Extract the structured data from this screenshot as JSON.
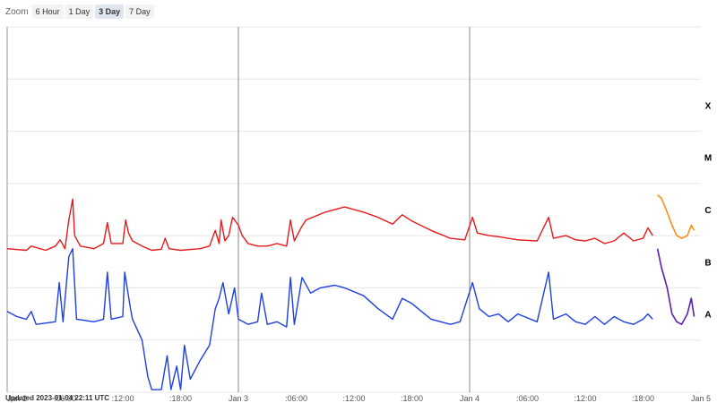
{
  "zoom": {
    "label": "Zoom",
    "buttons": [
      {
        "label": "6 Hour",
        "active": false
      },
      {
        "label": "1 Day",
        "active": false
      },
      {
        "label": "3 Day",
        "active": true
      },
      {
        "label": "7 Day",
        "active": false
      }
    ]
  },
  "updated": "Updated 2023-01-04 22:11 UTC",
  "chart_data": {
    "type": "line",
    "title": "",
    "xlabel": "",
    "ylabel": "",
    "grid": true,
    "x_tick_labels": [
      "Jan 2",
      ":06:00",
      ":12:00",
      ":18:00",
      "Jan 3",
      ":06:00",
      ":12:00",
      ":18:00",
      "Jan 4",
      ":06:00",
      ":12:00",
      ":18:00",
      "Jan 5"
    ],
    "x_range_hours": [
      0,
      72
    ],
    "y_scale": "log",
    "flare_classes": [
      {
        "label": "X",
        "level": 5
      },
      {
        "label": "M",
        "level": 4
      },
      {
        "label": "C",
        "level": 3
      },
      {
        "label": "B",
        "level": 2
      },
      {
        "label": "A",
        "level": 1
      }
    ],
    "y_range_levels": [
      0,
      7
    ],
    "colors": {
      "long": "#e41a1c",
      "long_recent": "#ff8c1a",
      "short": "#1f3fe0",
      "short_recent": "#5a1fb0"
    },
    "series": [
      {
        "key": "long",
        "points": [
          [
            0,
            2.75
          ],
          [
            2,
            2.72
          ],
          [
            2.5,
            2.8
          ],
          [
            4,
            2.72
          ],
          [
            5,
            2.8
          ],
          [
            5.5,
            2.92
          ],
          [
            6,
            2.75
          ],
          [
            6.4,
            3.3
          ],
          [
            6.8,
            3.7
          ],
          [
            7,
            3.0
          ],
          [
            7.6,
            2.8
          ],
          [
            9,
            2.75
          ],
          [
            10,
            2.85
          ],
          [
            10.4,
            3.25
          ],
          [
            10.8,
            2.85
          ],
          [
            12,
            2.85
          ],
          [
            12.3,
            3.3
          ],
          [
            12.6,
            3.05
          ],
          [
            13,
            2.9
          ],
          [
            14,
            2.8
          ],
          [
            15,
            2.72
          ],
          [
            16,
            2.74
          ],
          [
            16.4,
            2.95
          ],
          [
            16.8,
            2.75
          ],
          [
            18,
            2.72
          ],
          [
            20,
            2.75
          ],
          [
            21,
            2.8
          ],
          [
            21.6,
            3.1
          ],
          [
            22,
            2.85
          ],
          [
            22.2,
            3.3
          ],
          [
            22.6,
            2.9
          ],
          [
            23,
            3.0
          ],
          [
            23.4,
            3.35
          ],
          [
            24,
            3.2
          ],
          [
            24.4,
            3.0
          ],
          [
            25,
            2.85
          ],
          [
            26,
            2.8
          ],
          [
            27,
            2.8
          ],
          [
            28,
            2.85
          ],
          [
            29,
            2.8
          ],
          [
            29.4,
            3.3
          ],
          [
            29.8,
            2.9
          ],
          [
            30.5,
            3.15
          ],
          [
            31,
            3.3
          ],
          [
            33,
            3.45
          ],
          [
            35,
            3.55
          ],
          [
            37,
            3.45
          ],
          [
            38.5,
            3.35
          ],
          [
            40,
            3.22
          ],
          [
            41,
            3.4
          ],
          [
            42,
            3.28
          ],
          [
            44,
            3.1
          ],
          [
            46,
            2.95
          ],
          [
            47.5,
            2.92
          ],
          [
            48.3,
            3.35
          ],
          [
            48.8,
            3.05
          ],
          [
            50,
            3.0
          ],
          [
            51,
            2.98
          ],
          [
            52,
            2.95
          ],
          [
            53,
            2.92
          ],
          [
            55,
            2.9
          ],
          [
            56.2,
            3.35
          ],
          [
            56.7,
            2.95
          ],
          [
            58,
            3.0
          ],
          [
            59,
            2.92
          ],
          [
            60,
            2.9
          ],
          [
            61,
            2.95
          ],
          [
            62,
            2.85
          ],
          [
            63,
            2.9
          ],
          [
            64,
            3.05
          ],
          [
            65,
            2.9
          ],
          [
            66,
            2.95
          ],
          [
            66.5,
            3.15
          ],
          [
            67,
            3.0
          ],
          [
            67.5,
            3.78
          ],
          [
            67.9,
            3.72
          ],
          [
            68.5,
            3.45
          ],
          [
            69,
            3.2
          ],
          [
            69.5,
            3.0
          ],
          [
            70,
            2.95
          ],
          [
            70.6,
            3.0
          ],
          [
            71,
            3.2
          ],
          [
            71.3,
            3.1
          ]
        ]
      },
      {
        "key": "short",
        "points": [
          [
            0,
            1.55
          ],
          [
            1,
            1.45
          ],
          [
            2,
            1.4
          ],
          [
            2.5,
            1.55
          ],
          [
            3,
            1.3
          ],
          [
            5,
            1.35
          ],
          [
            5.4,
            2.1
          ],
          [
            5.8,
            1.35
          ],
          [
            6.4,
            2.6
          ],
          [
            6.8,
            2.75
          ],
          [
            7.2,
            1.4
          ],
          [
            9,
            1.35
          ],
          [
            10,
            1.4
          ],
          [
            10.4,
            2.3
          ],
          [
            10.8,
            1.4
          ],
          [
            12,
            1.45
          ],
          [
            12.2,
            2.3
          ],
          [
            12.8,
            1.6
          ],
          [
            13,
            1.4
          ],
          [
            14,
            1.0
          ],
          [
            14.6,
            0.3
          ],
          [
            15,
            0.05
          ],
          [
            16,
            0.05
          ],
          [
            16.6,
            0.7
          ],
          [
            17,
            0.05
          ],
          [
            17.6,
            0.5
          ],
          [
            18,
            0.05
          ],
          [
            18.4,
            0.9
          ],
          [
            19,
            0.25
          ],
          [
            20,
            0.6
          ],
          [
            21,
            0.9
          ],
          [
            21.6,
            1.6
          ],
          [
            22,
            1.8
          ],
          [
            22.4,
            2.1
          ],
          [
            23,
            1.5
          ],
          [
            23.6,
            2.0
          ],
          [
            24,
            1.4
          ],
          [
            25,
            1.3
          ],
          [
            26,
            1.35
          ],
          [
            26.4,
            1.9
          ],
          [
            27,
            1.3
          ],
          [
            28,
            1.35
          ],
          [
            29,
            1.25
          ],
          [
            29.4,
            2.2
          ],
          [
            29.8,
            1.3
          ],
          [
            30.6,
            2.2
          ],
          [
            31.5,
            1.9
          ],
          [
            32.5,
            2.0
          ],
          [
            34,
            2.05
          ],
          [
            35,
            2.0
          ],
          [
            37,
            1.85
          ],
          [
            38.5,
            1.6
          ],
          [
            40,
            1.4
          ],
          [
            41,
            1.8
          ],
          [
            42,
            1.7
          ],
          [
            44,
            1.4
          ],
          [
            45,
            1.35
          ],
          [
            46,
            1.3
          ],
          [
            47,
            1.35
          ],
          [
            48.3,
            2.1
          ],
          [
            49,
            1.6
          ],
          [
            50,
            1.45
          ],
          [
            51,
            1.5
          ],
          [
            52,
            1.35
          ],
          [
            53,
            1.5
          ],
          [
            55,
            1.35
          ],
          [
            56.2,
            2.3
          ],
          [
            56.7,
            1.4
          ],
          [
            58,
            1.5
          ],
          [
            59,
            1.35
          ],
          [
            60,
            1.3
          ],
          [
            61,
            1.45
          ],
          [
            62,
            1.3
          ],
          [
            63,
            1.45
          ],
          [
            64,
            1.35
          ],
          [
            65,
            1.3
          ],
          [
            66,
            1.4
          ],
          [
            66.5,
            1.5
          ],
          [
            67,
            1.4
          ],
          [
            67.5,
            2.75
          ],
          [
            67.9,
            2.4
          ],
          [
            68.5,
            2.0
          ],
          [
            69,
            1.5
          ],
          [
            69.5,
            1.35
          ],
          [
            70,
            1.3
          ],
          [
            70.6,
            1.5
          ],
          [
            71,
            1.8
          ],
          [
            71.3,
            1.45
          ]
        ]
      }
    ],
    "recent_from_hour": 67.3
  }
}
